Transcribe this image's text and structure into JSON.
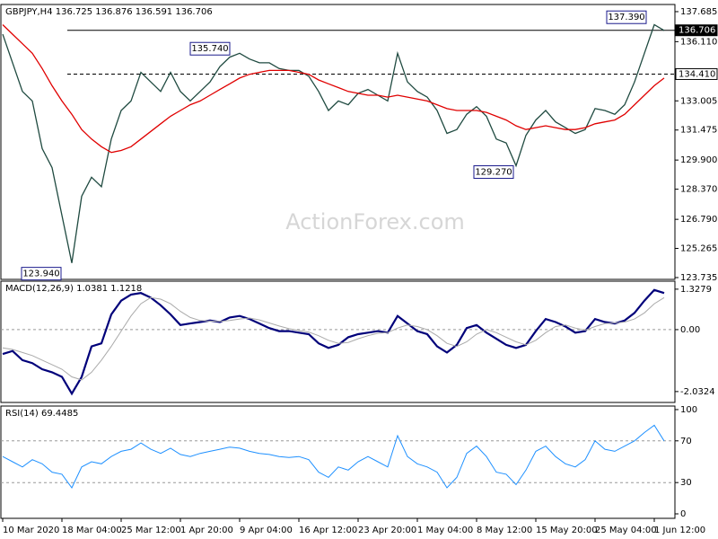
{
  "watermark": "ActionForex.com",
  "chart_data": [
    {
      "type": "line",
      "title": "GBPJPY,H4 136.725 136.876 136.591 136.706",
      "ylim": [
        123.64,
        138.06
      ],
      "yticks": [
        137.685,
        {
          "value": 136.11,
          "label": "136.110"
        },
        133.005,
        131.475,
        {
          "value": 129.9,
          "label": "129.900"
        },
        {
          "value": 128.37,
          "label": "128.370"
        },
        {
          "value": 126.79,
          "label": "126.790"
        },
        125.265,
        123.735
      ],
      "hlines": [
        {
          "value": 136.706,
          "dashed": false
        },
        {
          "value": 134.41,
          "label": "134.410",
          "dashed": true
        }
      ],
      "annotations": [
        {
          "value": 137.39,
          "label": "137.390"
        },
        {
          "value": 135.74,
          "label": "135.740"
        },
        {
          "value": 129.27,
          "label": "129.270"
        },
        {
          "value": 123.94,
          "label": "123.940"
        }
      ],
      "series": [
        {
          "name": "GBPJPY",
          "color": "#1f4a40",
          "width": 1.3,
          "values": [
            136.5,
            135.0,
            133.5,
            133.0,
            130.5,
            129.5,
            127.0,
            124.5,
            128.0,
            129.0,
            128.5,
            131.0,
            132.5,
            133.0,
            134.5,
            134.0,
            133.5,
            134.5,
            133.5,
            133.0,
            133.5,
            134.0,
            134.8,
            135.3,
            135.5,
            135.2,
            135.0,
            135.0,
            134.7,
            134.6,
            134.6,
            134.3,
            133.5,
            132.5,
            133.0,
            132.8,
            133.4,
            133.6,
            133.3,
            133.0,
            135.5,
            134.0,
            133.5,
            133.2,
            132.5,
            131.3,
            131.5,
            132.3,
            132.7,
            132.2,
            131.0,
            130.8,
            129.6,
            131.2,
            132.0,
            132.5,
            131.9,
            131.6,
            131.3,
            131.5,
            132.6,
            132.5,
            132.3,
            132.8,
            134.0,
            135.5,
            137.0,
            136.7
          ]
        },
        {
          "name": "MA",
          "color": "#e00000",
          "width": 1.3,
          "values": [
            137.0,
            136.5,
            136.0,
            135.5,
            134.7,
            133.8,
            133.0,
            132.3,
            131.5,
            131.0,
            130.6,
            130.3,
            130.4,
            130.6,
            131.0,
            131.4,
            131.8,
            132.2,
            132.5,
            132.8,
            133.0,
            133.3,
            133.6,
            133.9,
            134.2,
            134.4,
            134.5,
            134.6,
            134.6,
            134.6,
            134.5,
            134.4,
            134.1,
            133.9,
            133.7,
            133.5,
            133.4,
            133.3,
            133.3,
            133.2,
            133.3,
            133.2,
            133.1,
            133.0,
            132.8,
            132.6,
            132.5,
            132.5,
            132.5,
            132.4,
            132.2,
            132.0,
            131.7,
            131.5,
            131.6,
            131.7,
            131.6,
            131.5,
            131.5,
            131.6,
            131.8,
            131.9,
            132.0,
            132.3,
            132.8,
            133.3,
            133.8,
            134.2
          ]
        }
      ]
    },
    {
      "type": "line",
      "title": "MACD(12,26,9) 1.0381 1.1218",
      "ylim": [
        -2.39,
        1.59
      ],
      "yticks": [
        1.3279,
        {
          "value": 0,
          "label": "0.00"
        },
        -2.0324
      ],
      "levels": [
        0
      ],
      "series": [
        {
          "name": "MACD",
          "color": "#00007a",
          "width": 2.2,
          "values": [
            -0.8,
            -0.7,
            -1.0,
            -1.1,
            -1.3,
            -1.4,
            -1.55,
            -2.1,
            -1.55,
            -0.55,
            -0.45,
            0.5,
            0.95,
            1.15,
            1.2,
            1.05,
            0.8,
            0.5,
            0.15,
            0.2,
            0.25,
            0.3,
            0.25,
            0.4,
            0.45,
            0.35,
            0.2,
            0.05,
            -0.05,
            -0.05,
            -0.1,
            -0.15,
            -0.45,
            -0.6,
            -0.5,
            -0.25,
            -0.15,
            -0.1,
            -0.05,
            -0.1,
            0.45,
            0.2,
            -0.05,
            -0.15,
            -0.55,
            -0.75,
            -0.5,
            0.05,
            0.15,
            -0.1,
            -0.3,
            -0.5,
            -0.6,
            -0.5,
            -0.05,
            0.35,
            0.25,
            0.1,
            -0.1,
            -0.05,
            0.35,
            0.25,
            0.2,
            0.3,
            0.55,
            0.95,
            1.3,
            1.2
          ]
        },
        {
          "name": "Signal",
          "color": "#aaaaaa",
          "width": 1,
          "values": [
            -0.6,
            -0.65,
            -0.75,
            -0.85,
            -1.0,
            -1.15,
            -1.3,
            -1.55,
            -1.65,
            -1.4,
            -1.0,
            -0.55,
            -0.05,
            0.45,
            0.85,
            1.05,
            1.0,
            0.85,
            0.6,
            0.4,
            0.3,
            0.28,
            0.27,
            0.3,
            0.35,
            0.38,
            0.32,
            0.22,
            0.12,
            0.03,
            -0.03,
            -0.08,
            -0.2,
            -0.35,
            -0.45,
            -0.42,
            -0.3,
            -0.2,
            -0.12,
            -0.1,
            0.05,
            0.15,
            0.1,
            0.0,
            -0.2,
            -0.45,
            -0.55,
            -0.4,
            -0.15,
            0.0,
            -0.1,
            -0.25,
            -0.4,
            -0.5,
            -0.35,
            -0.1,
            0.1,
            0.15,
            0.05,
            -0.02,
            0.1,
            0.2,
            0.22,
            0.25,
            0.35,
            0.55,
            0.85,
            1.05
          ]
        }
      ]
    },
    {
      "type": "line",
      "title": "RSI(14) 69.4485",
      "ylim": [
        -4.3,
        103.4
      ],
      "yticks": [
        100,
        70,
        30,
        0
      ],
      "levels": [
        70,
        30
      ],
      "categories": [
        "10 Mar 2020",
        null,
        null,
        null,
        null,
        null,
        "18 Mar 04:00",
        null,
        null,
        null,
        null,
        null,
        "25 Mar 12:00",
        null,
        null,
        null,
        null,
        null,
        "1 Apr 20:00",
        null,
        null,
        null,
        null,
        null,
        "9 Apr 04:00",
        null,
        null,
        null,
        null,
        null,
        "16 Apr 12:00",
        null,
        null,
        null,
        null,
        null,
        "23 Apr 20:00",
        null,
        null,
        null,
        null,
        null,
        "1 May 04:00",
        null,
        null,
        null,
        null,
        null,
        "8 May 12:00",
        null,
        null,
        null,
        null,
        null,
        "15 May 20:00",
        null,
        null,
        null,
        null,
        null,
        "25 May 04:00",
        null,
        null,
        null,
        null,
        null,
        "1 Jun 12:00",
        null
      ],
      "series": [
        {
          "name": "RSI",
          "color": "#1e90ff",
          "width": 1,
          "values": [
            55,
            50,
            45,
            52,
            48,
            40,
            38,
            25,
            45,
            50,
            48,
            55,
            60,
            62,
            68,
            62,
            58,
            63,
            57,
            55,
            58,
            60,
            62,
            64,
            63,
            60,
            58,
            57,
            55,
            54,
            55,
            52,
            40,
            35,
            45,
            42,
            50,
            55,
            50,
            45,
            75,
            55,
            48,
            45,
            40,
            25,
            35,
            58,
            65,
            55,
            40,
            38,
            28,
            42,
            60,
            65,
            55,
            48,
            45,
            52,
            70,
            62,
            60,
            65,
            70,
            78,
            85,
            70
          ]
        }
      ]
    }
  ]
}
